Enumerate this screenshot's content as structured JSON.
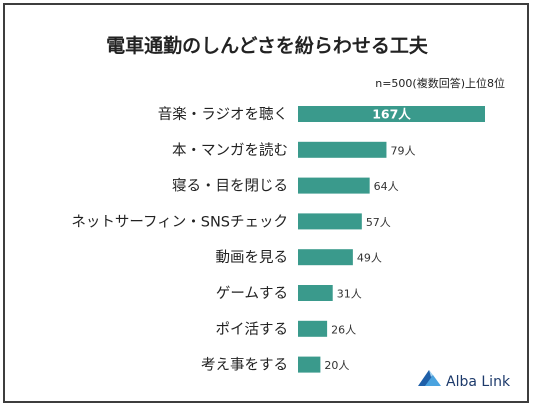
{
  "chart_data": {
    "type": "bar",
    "orientation": "horizontal",
    "title": "電車通勤のしんどさを紛らわせる工夫",
    "note": "n=500(複数回答)上位8位",
    "categories": [
      "音楽・ラジオを聴く",
      "本・マンガを読む",
      "寝る・目を閉じる",
      "ネットサーフィン・SNSチェック",
      "動画を見る",
      "ゲームする",
      "ポイ活する",
      "考え事をする"
    ],
    "values": [
      167,
      79,
      64,
      57,
      49,
      31,
      26,
      20
    ],
    "value_labels": [
      "167人",
      "79人",
      "64人",
      "57人",
      "49人",
      "31人",
      "26人",
      "20人"
    ],
    "unit": "人",
    "xlim": [
      0,
      167
    ],
    "bar_color": "#3a9a8c",
    "grid": false,
    "legend": "none"
  },
  "brand": {
    "name": "Alba Link",
    "logo_icon": "triangle-mountain-icon",
    "logo_color": "#2b6fb6",
    "text_color": "#1d3a6b"
  }
}
